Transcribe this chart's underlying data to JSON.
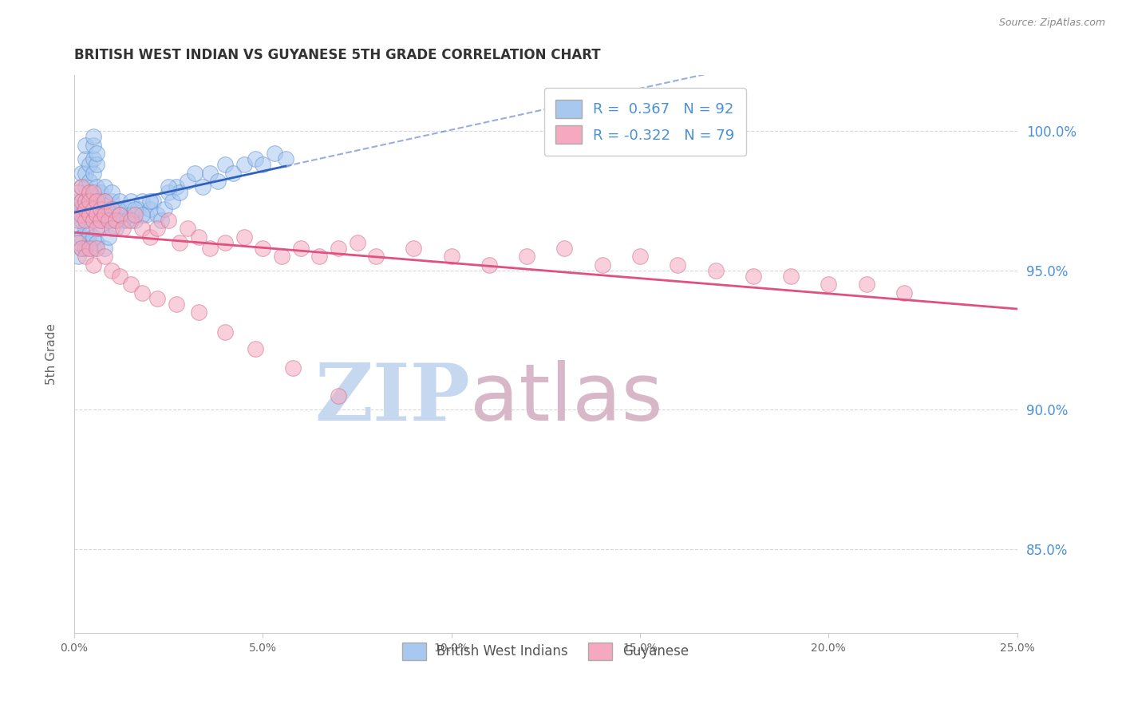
{
  "title": "BRITISH WEST INDIAN VS GUYANESE 5TH GRADE CORRELATION CHART",
  "source": "Source: ZipAtlas.com",
  "xlabel_ticks": [
    "0.0%",
    "5.0%",
    "10.0%",
    "15.0%",
    "20.0%",
    "25.0%"
  ],
  "xlabel_vals": [
    0.0,
    0.05,
    0.1,
    0.15,
    0.2,
    0.25
  ],
  "ylabel_ticks": [
    "85.0%",
    "90.0%",
    "95.0%",
    "100.0%"
  ],
  "ylabel_vals": [
    0.85,
    0.9,
    0.95,
    1.0
  ],
  "xlim": [
    0.0,
    0.25
  ],
  "ylim": [
    0.82,
    1.02
  ],
  "ylabel_label": "5th Grade",
  "blue_R": 0.367,
  "blue_N": 92,
  "pink_R": -0.322,
  "pink_N": 79,
  "legend_label_blue": "British West Indians",
  "legend_label_pink": "Guyanese",
  "blue_color": "#a8c8f0",
  "pink_color": "#f5a8c0",
  "blue_line_color": "#3060c0",
  "pink_line_color": "#e05080",
  "blue_edge_color": "#6090d0",
  "pink_edge_color": "#d07090",
  "blue_scatter_x": [
    0.001,
    0.001,
    0.001,
    0.002,
    0.002,
    0.002,
    0.002,
    0.002,
    0.003,
    0.003,
    0.003,
    0.003,
    0.003,
    0.004,
    0.004,
    0.004,
    0.004,
    0.004,
    0.005,
    0.005,
    0.005,
    0.005,
    0.006,
    0.006,
    0.006,
    0.006,
    0.007,
    0.007,
    0.007,
    0.008,
    0.008,
    0.008,
    0.009,
    0.009,
    0.01,
    0.01,
    0.01,
    0.011,
    0.011,
    0.012,
    0.012,
    0.013,
    0.014,
    0.015,
    0.015,
    0.016,
    0.017,
    0.018,
    0.019,
    0.02,
    0.021,
    0.022,
    0.023,
    0.024,
    0.025,
    0.026,
    0.027,
    0.028,
    0.03,
    0.032,
    0.034,
    0.036,
    0.038,
    0.04,
    0.042,
    0.045,
    0.048,
    0.05,
    0.053,
    0.056,
    0.001,
    0.001,
    0.002,
    0.002,
    0.003,
    0.003,
    0.004,
    0.004,
    0.005,
    0.005,
    0.006,
    0.007,
    0.008,
    0.009,
    0.01,
    0.011,
    0.012,
    0.014,
    0.016,
    0.018,
    0.02,
    0.025
  ],
  "blue_scatter_y": [
    0.97,
    0.975,
    0.965,
    0.98,
    0.975,
    0.985,
    0.972,
    0.968,
    0.975,
    0.98,
    0.985,
    0.99,
    0.995,
    0.978,
    0.982,
    0.988,
    0.975,
    0.97,
    0.985,
    0.99,
    0.995,
    0.998,
    0.975,
    0.98,
    0.988,
    0.992,
    0.972,
    0.978,
    0.968,
    0.98,
    0.975,
    0.97,
    0.968,
    0.972,
    0.975,
    0.97,
    0.978,
    0.972,
    0.968,
    0.975,
    0.97,
    0.968,
    0.972,
    0.975,
    0.97,
    0.968,
    0.972,
    0.975,
    0.97,
    0.972,
    0.975,
    0.97,
    0.968,
    0.972,
    0.978,
    0.975,
    0.98,
    0.978,
    0.982,
    0.985,
    0.98,
    0.985,
    0.982,
    0.988,
    0.985,
    0.988,
    0.99,
    0.988,
    0.992,
    0.99,
    0.96,
    0.955,
    0.958,
    0.962,
    0.958,
    0.965,
    0.96,
    0.963,
    0.958,
    0.962,
    0.96,
    0.965,
    0.958,
    0.962,
    0.968,
    0.965,
    0.97,
    0.968,
    0.972,
    0.97,
    0.975,
    0.98
  ],
  "pink_scatter_x": [
    0.001,
    0.001,
    0.001,
    0.002,
    0.002,
    0.002,
    0.003,
    0.003,
    0.003,
    0.004,
    0.004,
    0.004,
    0.005,
    0.005,
    0.005,
    0.006,
    0.006,
    0.006,
    0.007,
    0.007,
    0.008,
    0.008,
    0.009,
    0.01,
    0.01,
    0.011,
    0.012,
    0.013,
    0.015,
    0.016,
    0.018,
    0.02,
    0.022,
    0.025,
    0.028,
    0.03,
    0.033,
    0.036,
    0.04,
    0.045,
    0.05,
    0.055,
    0.06,
    0.065,
    0.07,
    0.075,
    0.08,
    0.09,
    0.1,
    0.11,
    0.12,
    0.13,
    0.14,
    0.15,
    0.16,
    0.17,
    0.18,
    0.19,
    0.2,
    0.21,
    0.22,
    0.001,
    0.002,
    0.003,
    0.004,
    0.005,
    0.006,
    0.008,
    0.01,
    0.012,
    0.015,
    0.018,
    0.022,
    0.027,
    0.033,
    0.04,
    0.048,
    0.058,
    0.07
  ],
  "pink_scatter_y": [
    0.972,
    0.978,
    0.968,
    0.975,
    0.97,
    0.98,
    0.975,
    0.968,
    0.972,
    0.978,
    0.97,
    0.975,
    0.968,
    0.972,
    0.978,
    0.97,
    0.975,
    0.965,
    0.972,
    0.968,
    0.97,
    0.975,
    0.968,
    0.972,
    0.965,
    0.968,
    0.97,
    0.965,
    0.968,
    0.97,
    0.965,
    0.962,
    0.965,
    0.968,
    0.96,
    0.965,
    0.962,
    0.958,
    0.96,
    0.962,
    0.958,
    0.955,
    0.958,
    0.955,
    0.958,
    0.96,
    0.955,
    0.958,
    0.955,
    0.952,
    0.955,
    0.958,
    0.952,
    0.955,
    0.952,
    0.95,
    0.948,
    0.948,
    0.945,
    0.945,
    0.942,
    0.96,
    0.958,
    0.955,
    0.958,
    0.952,
    0.958,
    0.955,
    0.95,
    0.948,
    0.945,
    0.942,
    0.94,
    0.938,
    0.935,
    0.928,
    0.922,
    0.915,
    0.905
  ],
  "watermark_zip": "ZIP",
  "watermark_atlas": "atlas",
  "watermark_color_zip": "#c5d8f0",
  "watermark_color_atlas": "#d8b8c8",
  "grid_color": "#d8d8d8",
  "right_axis_color": "#4a90d9",
  "title_color": "#333333",
  "background_color": "#ffffff"
}
